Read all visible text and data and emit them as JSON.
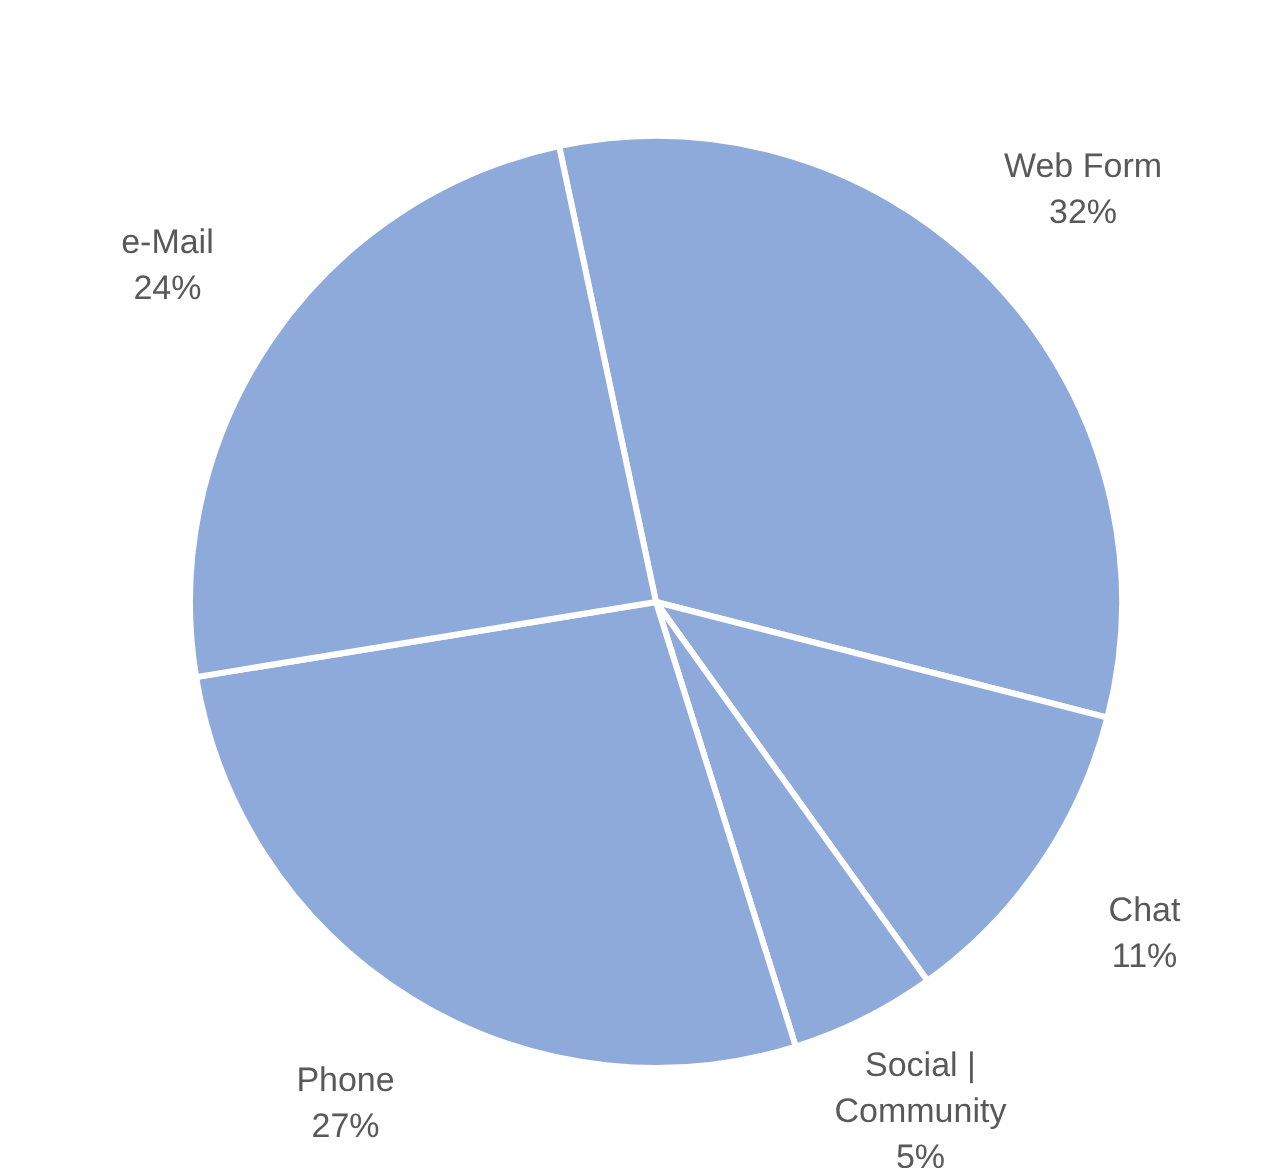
{
  "chart_data": {
    "type": "pie",
    "categories": [
      "Web Form",
      "Chat",
      "Social | Community",
      "Phone",
      "e-Mail"
    ],
    "values": [
      32,
      11,
      5,
      27,
      24
    ],
    "colors": [
      "#8eaadb",
      "#8eaadb",
      "#8eaadb",
      "#8eaadb",
      "#8eaadb"
    ],
    "value_labels": [
      "32%",
      "11%",
      "5%",
      "27%",
      "24%"
    ]
  }
}
